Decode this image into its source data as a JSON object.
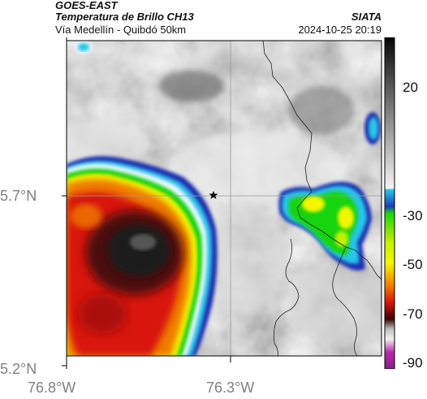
{
  "header": {
    "satellite": "GOES-EAST",
    "product": "Temperatura de Brillo CH13",
    "organization": "SIATA",
    "subtitle": "Vía Medellín - Quibdó 50km",
    "datetime": "2024-10-25 20:19"
  },
  "map": {
    "lat_labels": [
      "5.7°N",
      "5.2°N"
    ],
    "lon_labels": [
      "76.8°W",
      "76.3°W"
    ],
    "marker": "star-marker",
    "colors": {
      "warm_cloud_gray": "#8a8a8a",
      "frame": "#000000",
      "gridline": "#9a9a9a",
      "border_line": "#222222"
    }
  },
  "colorbar": {
    "tick_labels": [
      "20",
      "-30",
      "-50",
      "-70",
      "-90"
    ],
    "colors": {
      "black": "#0a0a0a",
      "gray_top": "#5a5a5a",
      "white": "#f2f2f2",
      "cyan": "#25c6e8",
      "blue": "#1c3db5",
      "green": "#19d411",
      "yellow": "#f3f600",
      "orange": "#f07a00",
      "red": "#d8140a",
      "dark_red": "#3a0505",
      "magenta": "#b42aa8"
    }
  }
}
